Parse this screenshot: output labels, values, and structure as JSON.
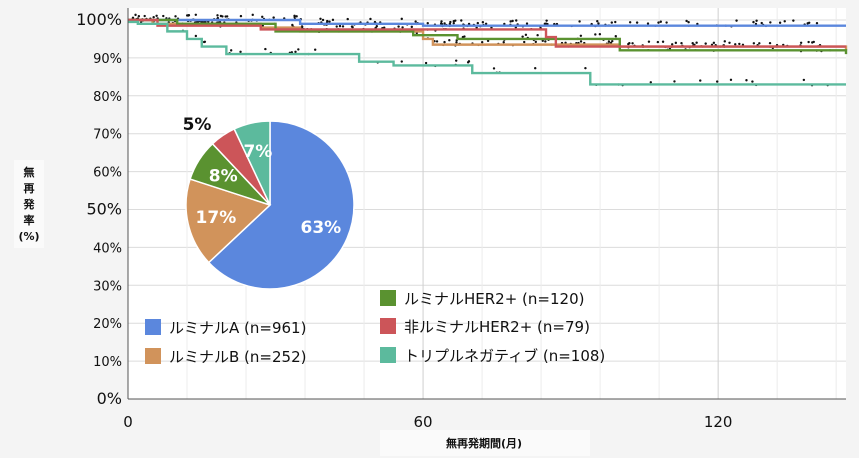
{
  "chart_data": [
    {
      "type": "line",
      "ylabel": "無再発率(%)",
      "xlabel": "無再発期間(月)",
      "xlim": [
        0,
        146
      ],
      "ylim": [
        0,
        100
      ],
      "x_ticks": [
        0,
        60,
        120
      ],
      "y_ticks": [
        "0%",
        "10%",
        "20%",
        "30%",
        "40%",
        "50%",
        "60%",
        "70%",
        "80%",
        "90%",
        "100%"
      ],
      "grid": true,
      "legend_position": "bottom-center",
      "series": [
        {
          "name": "ルミナルA (n=961)",
          "color": "#5b87dd",
          "points": [
            [
              0,
              100
            ],
            [
              15,
              100
            ],
            [
              35,
              99
            ],
            [
              60,
              98.5
            ],
            [
              146,
              98.5
            ]
          ]
        },
        {
          "name": "ルミナルB (n=252)",
          "color": "#d1935b",
          "points": [
            [
              0,
              100
            ],
            [
              5,
              99
            ],
            [
              27,
              98
            ],
            [
              35,
              97
            ],
            [
              60,
              95
            ],
            [
              62,
              93.5
            ],
            [
              100,
              93
            ],
            [
              146,
              92
            ]
          ]
        },
        {
          "name": "ルミナルHER2+ (n=120)",
          "color": "#5a9230",
          "points": [
            [
              0,
              100
            ],
            [
              10,
              99
            ],
            [
              30,
              97
            ],
            [
              58,
              96
            ],
            [
              67,
              95
            ],
            [
              100,
              92
            ],
            [
              146,
              91
            ]
          ]
        },
        {
          "name": "非ルミナルHER2+ (n=79)",
          "color": "#cc5559",
          "points": [
            [
              0,
              100
            ],
            [
              6,
              98.5
            ],
            [
              27,
              97.5
            ],
            [
              85,
              95.5
            ],
            [
              87,
              93
            ],
            [
              146,
              93
            ]
          ]
        },
        {
          "name": "トリプルネガティブ (n=108)",
          "color": "#5cba9d",
          "points": [
            [
              0,
              99.5
            ],
            [
              2,
              99
            ],
            [
              8,
              97
            ],
            [
              12,
              95
            ],
            [
              15,
              93
            ],
            [
              20,
              91
            ],
            [
              47,
              89
            ],
            [
              54,
              88
            ],
            [
              70,
              86
            ],
            [
              94,
              83
            ],
            [
              146,
              83
            ]
          ]
        }
      ]
    },
    {
      "type": "pie",
      "slices": [
        {
          "label": "63%",
          "value": 63,
          "color": "#5b87dd"
        },
        {
          "label": "17%",
          "value": 17,
          "color": "#d1935b"
        },
        {
          "label": "8%",
          "value": 8,
          "color": "#5a9230"
        },
        {
          "label": "5%",
          "value": 5,
          "color": "#cc5559"
        },
        {
          "label": "7%",
          "value": 7,
          "color": "#5cba9d"
        }
      ]
    }
  ]
}
